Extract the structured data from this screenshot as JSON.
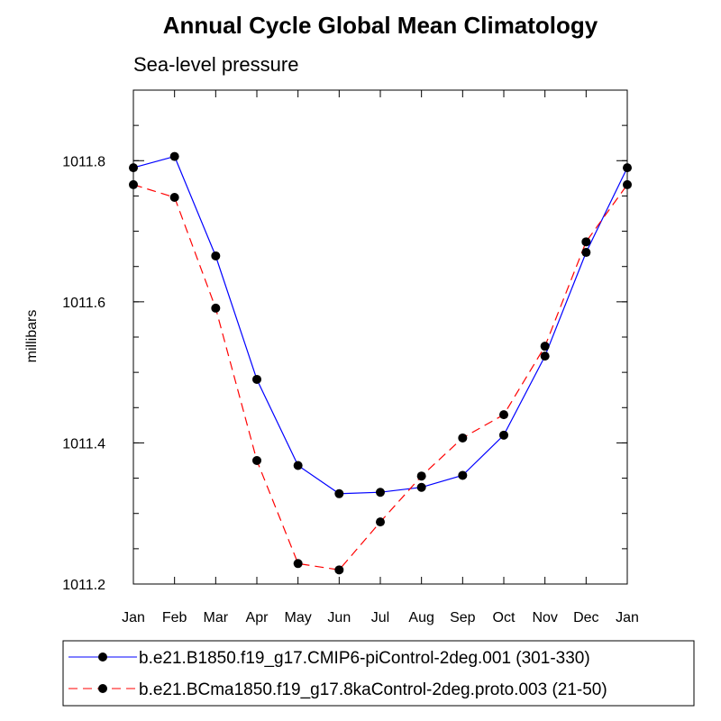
{
  "chart_data": {
    "type": "line",
    "title": "Annual Cycle Global Mean Climatology",
    "subtitle": "Sea-level pressure",
    "xlabel": "",
    "ylabel": "millibars",
    "categories": [
      "Jan",
      "Feb",
      "Mar",
      "Apr",
      "May",
      "Jun",
      "Jul",
      "Aug",
      "Sep",
      "Oct",
      "Nov",
      "Dec",
      "Jan"
    ],
    "ylim": [
      1011.2,
      1011.9
    ],
    "yticks": [
      1011.2,
      1011.4,
      1011.6,
      1011.8
    ],
    "ytick_labels": [
      "1011.2",
      "1011.4",
      "1011.6",
      "1011.8"
    ],
    "yminor_step": 0.05,
    "series": [
      {
        "name": "b.e21.B1850.f19_g17.CMIP6-piControl-2deg.001 (301-330)",
        "color": "#0000ff",
        "dash": "solid",
        "values": [
          1011.79,
          1011.806,
          1011.665,
          1011.49,
          1011.368,
          1011.328,
          1011.33,
          1011.337,
          1011.354,
          1011.411,
          1011.523,
          1011.67,
          1011.79
        ]
      },
      {
        "name": "b.e21.BCma1850.f19_g17.8kaControl-2deg.proto.003 (21-50)",
        "color": "#ff0000",
        "dash": "dashed",
        "values": [
          1011.766,
          1011.748,
          1011.591,
          1011.375,
          1011.229,
          1011.22,
          1011.288,
          1011.353,
          1011.407,
          1011.44,
          1011.537,
          1011.685,
          1011.766
        ]
      }
    ],
    "legend_position": "bottom"
  }
}
